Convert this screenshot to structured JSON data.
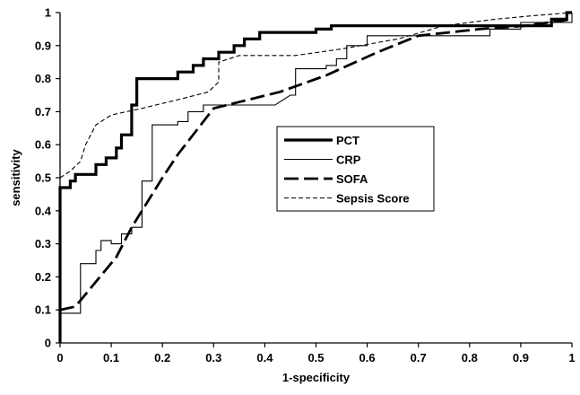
{
  "chart_data": {
    "type": "line",
    "title": "",
    "xlabel": "1-specificity",
    "ylabel": "sensitivity",
    "xlim": [
      0,
      1
    ],
    "ylim": [
      0,
      1
    ],
    "xticks": [
      "0",
      "0.1",
      "0.2",
      "0.3",
      "0.4",
      "0.5",
      "0.6",
      "0.7",
      "0.8",
      "0.9",
      "1"
    ],
    "yticks": [
      "0",
      "0.1",
      "0.2",
      "0.3",
      "0.4",
      "0.5",
      "0.6",
      "0.7",
      "0.8",
      "0.9",
      "1"
    ],
    "grid": false,
    "legend_position": "center-right",
    "series": [
      {
        "name": "PCT",
        "style": "thick-solid",
        "color": "#000000",
        "points": [
          [
            0,
            0
          ],
          [
            0,
            0.47
          ],
          [
            0.02,
            0.47
          ],
          [
            0.02,
            0.49
          ],
          [
            0.03,
            0.49
          ],
          [
            0.03,
            0.51
          ],
          [
            0.07,
            0.51
          ],
          [
            0.07,
            0.54
          ],
          [
            0.09,
            0.54
          ],
          [
            0.09,
            0.56
          ],
          [
            0.11,
            0.56
          ],
          [
            0.11,
            0.59
          ],
          [
            0.12,
            0.59
          ],
          [
            0.12,
            0.63
          ],
          [
            0.14,
            0.63
          ],
          [
            0.14,
            0.72
          ],
          [
            0.15,
            0.72
          ],
          [
            0.15,
            0.8
          ],
          [
            0.23,
            0.8
          ],
          [
            0.23,
            0.82
          ],
          [
            0.26,
            0.82
          ],
          [
            0.26,
            0.84
          ],
          [
            0.28,
            0.84
          ],
          [
            0.28,
            0.86
          ],
          [
            0.31,
            0.86
          ],
          [
            0.31,
            0.88
          ],
          [
            0.34,
            0.88
          ],
          [
            0.34,
            0.9
          ],
          [
            0.36,
            0.9
          ],
          [
            0.36,
            0.92
          ],
          [
            0.39,
            0.92
          ],
          [
            0.39,
            0.94
          ],
          [
            0.5,
            0.94
          ],
          [
            0.5,
            0.95
          ],
          [
            0.53,
            0.95
          ],
          [
            0.53,
            0.96
          ],
          [
            0.96,
            0.96
          ],
          [
            0.96,
            0.98
          ],
          [
            0.99,
            0.98
          ],
          [
            0.99,
            1
          ],
          [
            1,
            1
          ]
        ]
      },
      {
        "name": "CRP",
        "style": "thin-solid",
        "color": "#000000",
        "points": [
          [
            0,
            0
          ],
          [
            0,
            0.09
          ],
          [
            0.04,
            0.09
          ],
          [
            0.04,
            0.24
          ],
          [
            0.07,
            0.24
          ],
          [
            0.07,
            0.28
          ],
          [
            0.08,
            0.28
          ],
          [
            0.08,
            0.31
          ],
          [
            0.1,
            0.31
          ],
          [
            0.1,
            0.3
          ],
          [
            0.12,
            0.3
          ],
          [
            0.12,
            0.33
          ],
          [
            0.14,
            0.33
          ],
          [
            0.14,
            0.35
          ],
          [
            0.16,
            0.35
          ],
          [
            0.16,
            0.49
          ],
          [
            0.18,
            0.49
          ],
          [
            0.18,
            0.66
          ],
          [
            0.23,
            0.66
          ],
          [
            0.23,
            0.67
          ],
          [
            0.25,
            0.67
          ],
          [
            0.25,
            0.7
          ],
          [
            0.28,
            0.7
          ],
          [
            0.28,
            0.72
          ],
          [
            0.3,
            0.72
          ],
          [
            0.3,
            0.72
          ],
          [
            0.42,
            0.72
          ],
          [
            0.45,
            0.75
          ],
          [
            0.46,
            0.75
          ],
          [
            0.46,
            0.83
          ],
          [
            0.52,
            0.83
          ],
          [
            0.52,
            0.84
          ],
          [
            0.54,
            0.84
          ],
          [
            0.54,
            0.86
          ],
          [
            0.56,
            0.86
          ],
          [
            0.56,
            0.9
          ],
          [
            0.6,
            0.9
          ],
          [
            0.6,
            0.93
          ],
          [
            0.84,
            0.93
          ],
          [
            0.84,
            0.95
          ],
          [
            0.9,
            0.95
          ],
          [
            0.9,
            0.97
          ],
          [
            1,
            0.97
          ],
          [
            1,
            1
          ]
        ]
      },
      {
        "name": "SOFA",
        "style": "thick-dashed",
        "color": "#000000",
        "points": [
          [
            0,
            0.1
          ],
          [
            0.03,
            0.11
          ],
          [
            0.11,
            0.26
          ],
          [
            0.14,
            0.35
          ],
          [
            0.2,
            0.5
          ],
          [
            0.23,
            0.57
          ],
          [
            0.3,
            0.71
          ],
          [
            0.43,
            0.76
          ],
          [
            0.52,
            0.81
          ],
          [
            0.62,
            0.88
          ],
          [
            0.7,
            0.93
          ],
          [
            0.82,
            0.95
          ],
          [
            0.91,
            0.96
          ],
          [
            1,
            0.98
          ]
        ]
      },
      {
        "name": "Sepsis Score",
        "style": "thin-dashed",
        "color": "#000000",
        "points": [
          [
            0,
            0.5
          ],
          [
            0.02,
            0.52
          ],
          [
            0.04,
            0.55
          ],
          [
            0.05,
            0.6
          ],
          [
            0.07,
            0.66
          ],
          [
            0.1,
            0.69
          ],
          [
            0.16,
            0.71
          ],
          [
            0.24,
            0.74
          ],
          [
            0.29,
            0.76
          ],
          [
            0.31,
            0.79
          ],
          [
            0.31,
            0.85
          ],
          [
            0.35,
            0.87
          ],
          [
            0.46,
            0.87
          ],
          [
            0.55,
            0.89
          ],
          [
            0.66,
            0.92
          ],
          [
            0.75,
            0.96
          ],
          [
            0.85,
            0.98
          ],
          [
            0.92,
            0.99
          ],
          [
            1,
            1
          ]
        ]
      }
    ]
  }
}
